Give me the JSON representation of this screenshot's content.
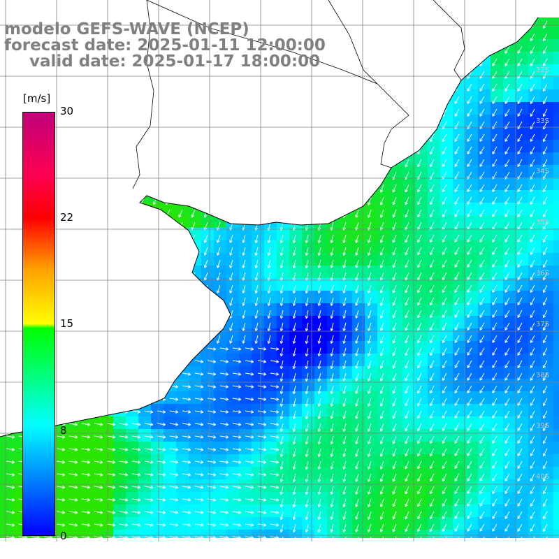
{
  "header": {
    "title": "modelo GEFS-WAVE (NCEP)",
    "forecast": "forecast date: 2025-01-11 12:00:00",
    "valid": "valid date: 2025-01-17 18:00:00"
  },
  "colorbar": {
    "unit": "[m/s]",
    "ticks": [
      "30",
      "22",
      "15",
      "8",
      "0"
    ]
  },
  "latitude_labels": [
    "32S",
    "33S",
    "34S",
    "35S",
    "36S",
    "37S",
    "38S",
    "39S",
    "40S"
  ],
  "colors": {
    "land": "#ffffff",
    "grid": "#808080",
    "vectors": "#ffffff",
    "scale": [
      "#0000ff",
      "#0080ff",
      "#00ffff",
      "#00ff00",
      "#ffff00",
      "#ff0000",
      "#c0007a"
    ]
  }
}
